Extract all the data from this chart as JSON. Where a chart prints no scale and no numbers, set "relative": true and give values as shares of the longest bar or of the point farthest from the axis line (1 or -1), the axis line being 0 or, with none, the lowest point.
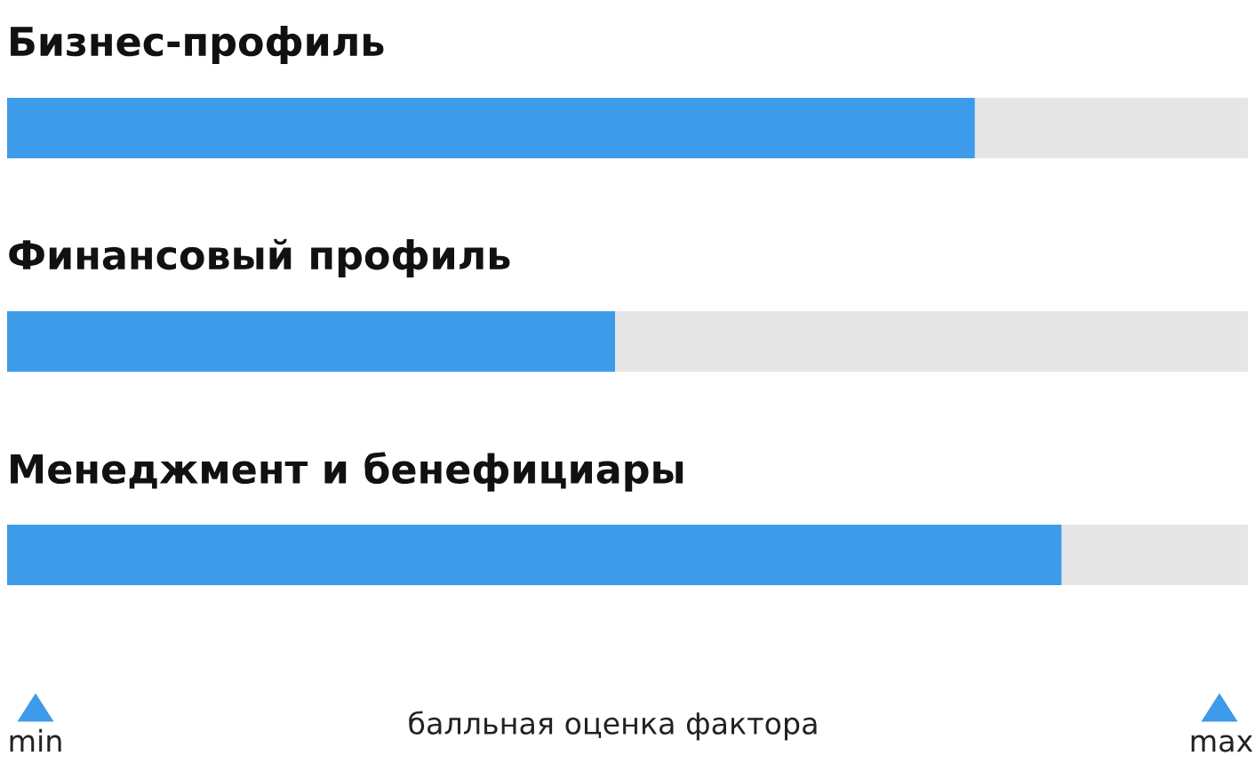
{
  "chart_data": {
    "type": "bar",
    "orientation": "horizontal",
    "stacked": true,
    "relative": true,
    "categories": [
      "Бизнес-профиль",
      "Финансовый профиль",
      "Менеджмент и бенефициары"
    ],
    "series": [
      {
        "color": "#3d9be9",
        "values": [
          0.78,
          0.49,
          0.85
        ]
      },
      {
        "color": "#e6e6e6",
        "values": [
          0.22,
          0.51,
          0.15
        ]
      }
    ],
    "annotations": [
      "min",
      "балльная оценка фактора",
      "max"
    ]
  }
}
